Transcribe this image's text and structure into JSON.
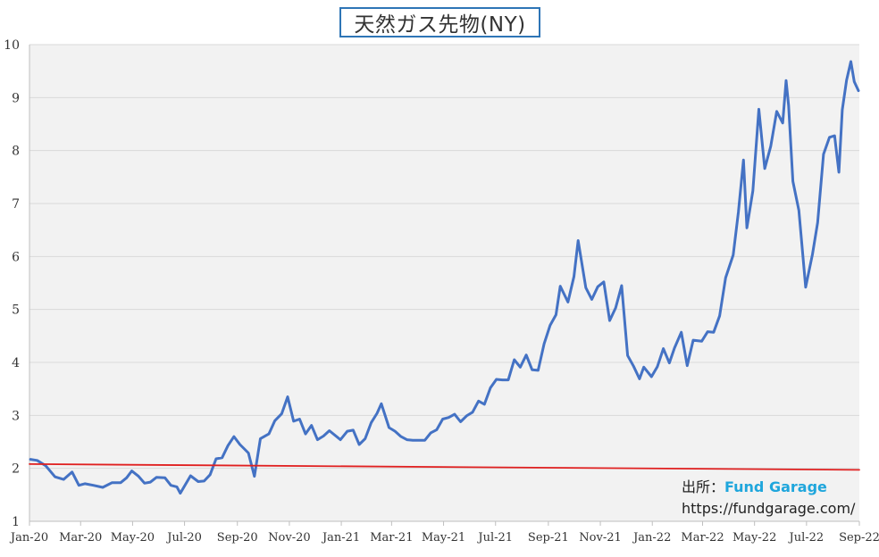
{
  "chart_data": {
    "type": "line",
    "title": "天然ガス先物(NY)",
    "xlabel": "",
    "ylabel": "",
    "ylim": [
      1,
      10
    ],
    "yticks": [
      1,
      2,
      3,
      4,
      5,
      6,
      7,
      8,
      9,
      10
    ],
    "xlim": [
      "2020-01",
      "2022-09"
    ],
    "xtick_labels": [
      "Jan-20",
      "Mar-20",
      "May-20",
      "Jul-20",
      "Sep-20",
      "Nov-20",
      "Jan-21",
      "Mar-21",
      "May-21",
      "Jul-21",
      "Sep-21",
      "Nov-21",
      "Jan-22",
      "Mar-22",
      "May-22",
      "Jul-22",
      "Sep-22"
    ],
    "grid": true,
    "series": [
      {
        "name": "",
        "color": "#4472c4",
        "points": [
          [
            "2020-01-02",
            2.17
          ],
          [
            "2020-01-10",
            2.15
          ],
          [
            "2020-01-20",
            2.05
          ],
          [
            "2020-01-31",
            1.84
          ],
          [
            "2020-02-10",
            1.79
          ],
          [
            "2020-02-20",
            1.93
          ],
          [
            "2020-02-28",
            1.68
          ],
          [
            "2020-03-06",
            1.71
          ],
          [
            "2020-03-16",
            1.68
          ],
          [
            "2020-03-27",
            1.64
          ],
          [
            "2020-04-07",
            1.73
          ],
          [
            "2020-04-17",
            1.73
          ],
          [
            "2020-04-24",
            1.82
          ],
          [
            "2020-04-30",
            1.95
          ],
          [
            "2020-05-08",
            1.85
          ],
          [
            "2020-05-15",
            1.72
          ],
          [
            "2020-05-22",
            1.74
          ],
          [
            "2020-05-29",
            1.83
          ],
          [
            "2020-06-08",
            1.82
          ],
          [
            "2020-06-15",
            1.68
          ],
          [
            "2020-06-22",
            1.65
          ],
          [
            "2020-06-26",
            1.53
          ],
          [
            "2020-07-08",
            1.86
          ],
          [
            "2020-07-17",
            1.75
          ],
          [
            "2020-07-24",
            1.76
          ],
          [
            "2020-07-31",
            1.88
          ],
          [
            "2020-08-07",
            2.18
          ],
          [
            "2020-08-14",
            2.2
          ],
          [
            "2020-08-21",
            2.43
          ],
          [
            "2020-08-28",
            2.6
          ],
          [
            "2020-09-04",
            2.45
          ],
          [
            "2020-09-14",
            2.29
          ],
          [
            "2020-09-21",
            1.85
          ],
          [
            "2020-09-28",
            2.56
          ],
          [
            "2020-10-08",
            2.65
          ],
          [
            "2020-10-15",
            2.9
          ],
          [
            "2020-10-23",
            3.03
          ],
          [
            "2020-10-30",
            3.35
          ],
          [
            "2020-11-06",
            2.89
          ],
          [
            "2020-11-13",
            2.93
          ],
          [
            "2020-11-20",
            2.65
          ],
          [
            "2020-11-27",
            2.81
          ],
          [
            "2020-12-04",
            2.54
          ],
          [
            "2020-12-11",
            2.61
          ],
          [
            "2020-12-18",
            2.71
          ],
          [
            "2020-12-31",
            2.54
          ],
          [
            "2021-01-08",
            2.7
          ],
          [
            "2021-01-15",
            2.72
          ],
          [
            "2021-01-22",
            2.45
          ],
          [
            "2021-01-29",
            2.56
          ],
          [
            "2021-02-05",
            2.86
          ],
          [
            "2021-02-12",
            3.04
          ],
          [
            "2021-02-17",
            3.22
          ],
          [
            "2021-02-26",
            2.77
          ],
          [
            "2021-03-05",
            2.7
          ],
          [
            "2021-03-12",
            2.6
          ],
          [
            "2021-03-19",
            2.54
          ],
          [
            "2021-03-26",
            2.53
          ],
          [
            "2021-04-09",
            2.53
          ],
          [
            "2021-04-16",
            2.67
          ],
          [
            "2021-04-23",
            2.73
          ],
          [
            "2021-04-30",
            2.93
          ],
          [
            "2021-05-07",
            2.96
          ],
          [
            "2021-05-14",
            3.02
          ],
          [
            "2021-05-21",
            2.88
          ],
          [
            "2021-05-28",
            2.99
          ],
          [
            "2021-06-04",
            3.06
          ],
          [
            "2021-06-11",
            3.27
          ],
          [
            "2021-06-18",
            3.21
          ],
          [
            "2021-06-25",
            3.52
          ],
          [
            "2021-07-02",
            3.68
          ],
          [
            "2021-07-09",
            3.67
          ],
          [
            "2021-07-16",
            3.67
          ],
          [
            "2021-07-23",
            4.05
          ],
          [
            "2021-07-30",
            3.91
          ],
          [
            "2021-08-06",
            4.14
          ],
          [
            "2021-08-13",
            3.86
          ],
          [
            "2021-08-20",
            3.85
          ],
          [
            "2021-08-27",
            4.35
          ],
          [
            "2021-09-03",
            4.7
          ],
          [
            "2021-09-10",
            4.9
          ],
          [
            "2021-09-15",
            5.44
          ],
          [
            "2021-09-24",
            5.14
          ],
          [
            "2021-10-01",
            5.62
          ],
          [
            "2021-10-06",
            6.3
          ],
          [
            "2021-10-15",
            5.41
          ],
          [
            "2021-10-22",
            5.19
          ],
          [
            "2021-10-29",
            5.43
          ],
          [
            "2021-11-05",
            5.52
          ],
          [
            "2021-11-12",
            4.79
          ],
          [
            "2021-11-19",
            5.03
          ],
          [
            "2021-11-26",
            5.45
          ],
          [
            "2021-12-03",
            4.13
          ],
          [
            "2021-12-10",
            3.93
          ],
          [
            "2021-12-17",
            3.69
          ],
          [
            "2021-12-22",
            3.91
          ],
          [
            "2021-12-31",
            3.73
          ],
          [
            "2022-01-07",
            3.92
          ],
          [
            "2022-01-14",
            4.26
          ],
          [
            "2022-01-21",
            3.99
          ],
          [
            "2022-01-27",
            4.27
          ],
          [
            "2022-02-04",
            4.57
          ],
          [
            "2022-02-11",
            3.94
          ],
          [
            "2022-02-18",
            4.42
          ],
          [
            "2022-02-28",
            4.4
          ],
          [
            "2022-03-07",
            4.58
          ],
          [
            "2022-03-14",
            4.57
          ],
          [
            "2022-03-21",
            4.88
          ],
          [
            "2022-03-28",
            5.6
          ],
          [
            "2022-04-06",
            6.03
          ],
          [
            "2022-04-12",
            6.84
          ],
          [
            "2022-04-18",
            7.82
          ],
          [
            "2022-04-22",
            6.54
          ],
          [
            "2022-04-29",
            7.24
          ],
          [
            "2022-05-06",
            8.78
          ],
          [
            "2022-05-13",
            7.66
          ],
          [
            "2022-05-20",
            8.08
          ],
          [
            "2022-05-27",
            8.74
          ],
          [
            "2022-06-03",
            8.52
          ],
          [
            "2022-06-07",
            9.32
          ],
          [
            "2022-06-10",
            8.85
          ],
          [
            "2022-06-15",
            7.42
          ],
          [
            "2022-06-22",
            6.87
          ],
          [
            "2022-06-30",
            5.42
          ],
          [
            "2022-07-08",
            6.04
          ],
          [
            "2022-07-14",
            6.64
          ],
          [
            "2022-07-21",
            7.93
          ],
          [
            "2022-07-28",
            8.25
          ],
          [
            "2022-08-03",
            8.28
          ],
          [
            "2022-08-08",
            7.59
          ],
          [
            "2022-08-12",
            8.77
          ],
          [
            "2022-08-17",
            9.33
          ],
          [
            "2022-08-22",
            9.68
          ],
          [
            "2022-08-26",
            9.3
          ],
          [
            "2022-08-31",
            9.13
          ]
        ]
      },
      {
        "name": "",
        "color": "#e02020",
        "points": [
          [
            "2020-01-01",
            2.08
          ],
          [
            "2022-09-01",
            1.97
          ]
        ]
      }
    ],
    "annotations": {
      "source_label": "出所：",
      "source_brand": "Fund Garage",
      "url": "https://fundgarage.com/"
    }
  }
}
